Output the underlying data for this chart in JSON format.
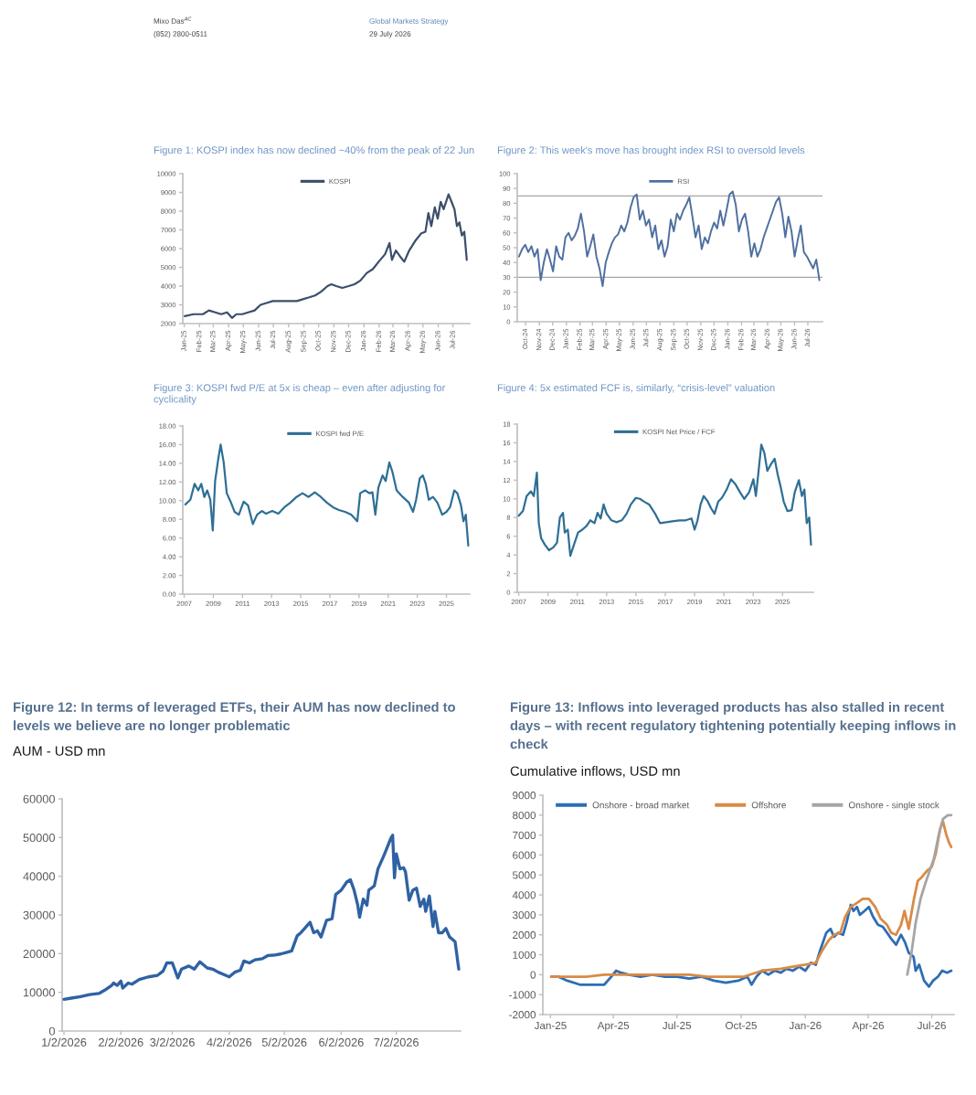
{
  "chart_data": [
    {
      "type": "line",
      "title": "Figure 1: KOSPI index has now declined ~40% from the peak of 22 Jun",
      "annotations": [
        "Mixo Das$^{AC}$",
        "(852) 2800-0511",
        "Global Markets Strategy",
        "29 July 2026"
      ],
      "x": [
        "2025-01-02",
        "2025-01-20",
        "2025-02-08",
        "2025-02-20",
        "2025-03-05",
        "2025-03-17",
        "2025-03-29",
        "2025-04-08",
        "2025-04-17",
        "2025-04-29",
        "2025-05-11",
        "2025-05-24",
        "2025-06-05",
        "2025-06-17",
        "2025-06-30",
        "2025-07-12",
        "2025-07-24",
        "2025-08-06",
        "2025-08-18",
        "2025-08-30",
        "2025-09-12",
        "2025-09-24",
        "2025-10-06",
        "2025-10-19",
        "2025-10-27",
        "2025-11-06",
        "2025-11-18",
        "2025-12-01",
        "2025-12-13",
        "2025-12-25",
        "2026-01-07",
        "2026-01-19",
        "2026-01-31",
        "2026-02-13",
        "2026-02-22",
        "2026-02-27",
        "2026-03-07",
        "2026-03-15",
        "2026-03-24",
        "2026-04-03",
        "2026-04-15",
        "2026-04-27",
        "2026-05-06",
        "2026-05-12",
        "2026-05-18",
        "2026-05-25",
        "2026-05-31",
        "2026-06-06",
        "2026-06-12",
        "2026-06-22",
        "2026-06-28",
        "2026-07-04",
        "2026-07-09",
        "2026-07-14",
        "2026-07-19",
        "2026-07-24",
        "2026-07-29"
      ],
      "series": [
        {
          "name": "KOSPI",
          "color": "#3b4f6b",
          "values": [
            2400,
            2500,
            2500,
            2700,
            2600,
            2500,
            2600,
            2300,
            2500,
            2500,
            2600,
            2700,
            3000,
            3100,
            3200,
            3200,
            3200,
            3200,
            3200,
            3300,
            3400,
            3500,
            3700,
            4000,
            4100,
            4000,
            3900,
            4000,
            4100,
            4300,
            4700,
            4900,
            5300,
            5700,
            6300,
            5400,
            5900,
            5600,
            5300,
            5900,
            6400,
            6800,
            6900,
            7900,
            7200,
            8200,
            7600,
            8500,
            8100,
            8900,
            8500,
            8100,
            7200,
            7400,
            6700,
            6900,
            5400
          ]
        }
      ],
      "xlim": [
        "2024-12-29",
        "2026-08-04"
      ],
      "ylim": [
        2000,
        10000
      ],
      "xticks": [
        {
          "value": "2025-01-01",
          "label": "Jan-25"
        },
        {
          "value": "2025-02-01",
          "label": "Feb-25"
        },
        {
          "value": "2025-03-01",
          "label": "Mar-25"
        },
        {
          "value": "2025-04-01",
          "label": "Apr-25"
        },
        {
          "value": "2025-05-01",
          "label": "May-25"
        },
        {
          "value": "2025-06-01",
          "label": "Jun-25"
        },
        {
          "value": "2025-07-01",
          "label": "Jul-25"
        },
        {
          "value": "2025-08-01",
          "label": "Aug-25"
        },
        {
          "value": "2025-09-01",
          "label": "Sep-25"
        },
        {
          "value": "2025-10-01",
          "label": "Oct-25"
        },
        {
          "value": "2025-11-01",
          "label": "Nov-25"
        },
        {
          "value": "2025-12-01",
          "label": "Dec-25"
        },
        {
          "value": "2026-01-01",
          "label": "Jan-26"
        },
        {
          "value": "2026-02-01",
          "label": "Feb-26"
        },
        {
          "value": "2026-03-01",
          "label": "Mar-26"
        },
        {
          "value": "2026-04-01",
          "label": "Apr-26"
        },
        {
          "value": "2026-05-01",
          "label": "May-26"
        },
        {
          "value": "2026-06-01",
          "label": "Jun-26"
        },
        {
          "value": "2026-07-01",
          "label": "Jul-26"
        }
      ],
      "yticks": [
        2000,
        3000,
        4000,
        5000,
        6000,
        7000,
        8000,
        9000,
        10000
      ],
      "legend": "top"
    },
    {
      "type": "line",
      "title": "Figure 2: This week's move has brought index RSI to oversold levels",
      "x": [
        "2024-09-16",
        "2024-09-23",
        "2024-09-30",
        "2024-10-07",
        "2024-10-14",
        "2024-10-21",
        "2024-10-28",
        "2024-11-04",
        "2024-11-11",
        "2024-11-18",
        "2024-11-25",
        "2024-12-02",
        "2024-12-09",
        "2024-12-16",
        "2024-12-23",
        "2024-12-30",
        "2025-01-06",
        "2025-01-13",
        "2025-01-20",
        "2025-01-27",
        "2025-02-03",
        "2025-02-10",
        "2025-02-17",
        "2025-02-24",
        "2025-03-03",
        "2025-03-10",
        "2025-03-17",
        "2025-03-24",
        "2025-03-31",
        "2025-04-07",
        "2025-04-14",
        "2025-04-21",
        "2025-04-28",
        "2025-05-05",
        "2025-05-12",
        "2025-05-19",
        "2025-05-26",
        "2025-06-02",
        "2025-06-09",
        "2025-06-16",
        "2025-06-23",
        "2025-06-30",
        "2025-07-07",
        "2025-07-14",
        "2025-07-21",
        "2025-07-28",
        "2025-08-04",
        "2025-08-11",
        "2025-08-18",
        "2025-08-25",
        "2025-09-01",
        "2025-09-08",
        "2025-09-15",
        "2025-09-22",
        "2025-09-29",
        "2025-10-06",
        "2025-10-13",
        "2025-10-20",
        "2025-10-27",
        "2025-11-03",
        "2025-11-10",
        "2025-11-17",
        "2025-11-24",
        "2025-12-01",
        "2025-12-08",
        "2025-12-15",
        "2025-12-22",
        "2025-12-29",
        "2026-01-05",
        "2026-01-12",
        "2026-01-19",
        "2026-01-26",
        "2026-02-02",
        "2026-02-09",
        "2026-02-16",
        "2026-02-23",
        "2026-03-02",
        "2026-03-09",
        "2026-03-16",
        "2026-03-23",
        "2026-03-30",
        "2026-04-06",
        "2026-04-13",
        "2026-04-20",
        "2026-04-27",
        "2026-05-04",
        "2026-05-11",
        "2026-05-18",
        "2026-05-25",
        "2026-06-01",
        "2026-06-08",
        "2026-06-15",
        "2026-06-22",
        "2026-06-29",
        "2026-07-06",
        "2026-07-13",
        "2026-07-20",
        "2026-07-27"
      ],
      "series": [
        {
          "name": "RSI",
          "color": "#4f6f9f",
          "values": [
            44,
            49,
            52,
            47,
            51,
            44,
            49,
            28,
            40,
            49,
            42,
            34,
            51,
            44,
            42,
            57,
            60,
            55,
            58,
            63,
            73,
            61,
            44,
            51,
            59,
            44,
            36,
            24,
            40,
            47,
            53,
            57,
            59,
            65,
            61,
            67,
            77,
            84,
            86,
            69,
            75,
            65,
            69,
            57,
            65,
            49,
            55,
            44,
            51,
            69,
            61,
            73,
            69,
            75,
            79,
            84,
            71,
            57,
            65,
            49,
            57,
            53,
            61,
            67,
            63,
            75,
            65,
            75,
            86,
            88,
            79,
            61,
            69,
            73,
            61,
            44,
            53,
            44,
            49,
            57,
            63,
            69,
            75,
            81,
            84,
            73,
            57,
            71,
            61,
            44,
            55,
            65,
            47,
            44,
            40,
            36,
            42,
            28
          ]
        }
      ],
      "ref_lines": [
        {
          "axis": "y",
          "value": 85,
          "color": "#a6a6a6"
        },
        {
          "axis": "y",
          "value": 30,
          "color": "#a6a6a6"
        }
      ],
      "xlim": [
        "2024-09-12",
        "2026-08-03"
      ],
      "ylim": [
        0,
        100
      ],
      "xticks": [
        {
          "value": "2024-10-01",
          "label": "Oct-24"
        },
        {
          "value": "2024-11-01",
          "label": "Nov-24"
        },
        {
          "value": "2024-12-01",
          "label": "Dec-24"
        },
        {
          "value": "2025-01-01",
          "label": "Jan-25"
        },
        {
          "value": "2025-02-01",
          "label": "Feb-25"
        },
        {
          "value": "2025-03-01",
          "label": "Mar-25"
        },
        {
          "value": "2025-04-01",
          "label": "Apr-25"
        },
        {
          "value": "2025-05-01",
          "label": "May-25"
        },
        {
          "value": "2025-06-01",
          "label": "Jun-25"
        },
        {
          "value": "2025-07-01",
          "label": "Jul-25"
        },
        {
          "value": "2025-08-01",
          "label": "Aug-25"
        },
        {
          "value": "2025-09-01",
          "label": "Sep-25"
        },
        {
          "value": "2025-10-01",
          "label": "Oct-25"
        },
        {
          "value": "2025-11-01",
          "label": "Nov-25"
        },
        {
          "value": "2025-12-01",
          "label": "Dec-25"
        },
        {
          "value": "2026-01-01",
          "label": "Jan-26"
        },
        {
          "value": "2026-02-01",
          "label": "Feb-26"
        },
        {
          "value": "2026-03-01",
          "label": "Mar-26"
        },
        {
          "value": "2026-04-01",
          "label": "Apr-26"
        },
        {
          "value": "2026-05-01",
          "label": "May-26"
        },
        {
          "value": "2026-06-01",
          "label": "Jun-26"
        },
        {
          "value": "2026-07-01",
          "label": "Jul-26"
        }
      ],
      "yticks": [
        0,
        10,
        20,
        30,
        40,
        50,
        60,
        70,
        80,
        90,
        100
      ],
      "legend": "top"
    },
    {
      "type": "line",
      "title": "Figure 3: KOSPI fwd P/E at 5x is cheap – even after adjusting for cyclicality",
      "x": [
        2007.08,
        2007.42,
        2007.71,
        2007.96,
        2008.17,
        2008.38,
        2008.58,
        2008.79,
        2008.96,
        2009.12,
        2009.33,
        2009.5,
        2009.71,
        2009.92,
        2010.21,
        2010.46,
        2010.75,
        2011.08,
        2011.38,
        2011.71,
        2012.0,
        2012.33,
        2012.62,
        2013.04,
        2013.46,
        2013.88,
        2014.29,
        2014.71,
        2015.12,
        2015.54,
        2015.96,
        2016.38,
        2016.79,
        2017.21,
        2017.62,
        2018.04,
        2018.46,
        2018.88,
        2019.08,
        2019.42,
        2019.71,
        2019.92,
        2020.12,
        2020.33,
        2020.62,
        2020.83,
        2021.08,
        2021.29,
        2021.58,
        2022.0,
        2022.42,
        2022.71,
        2022.92,
        2023.17,
        2023.38,
        2023.58,
        2023.79,
        2024.08,
        2024.38,
        2024.71,
        2025.0,
        2025.25,
        2025.54,
        2025.75,
        2026.0,
        2026.17,
        2026.33,
        2026.5
      ],
      "series": [
        {
          "name": "KOSPI fwd P/E",
          "color": "#2e6f95",
          "values": [
            9.6,
            10.1,
            11.8,
            11.1,
            11.8,
            10.4,
            11.1,
            10.1,
            6.8,
            12.1,
            14.4,
            16.0,
            14.1,
            10.8,
            9.8,
            8.8,
            8.5,
            9.9,
            9.5,
            7.5,
            8.5,
            8.9,
            8.6,
            8.9,
            8.6,
            9.3,
            9.8,
            10.4,
            10.8,
            10.4,
            10.9,
            10.4,
            9.8,
            9.3,
            9.0,
            8.8,
            8.5,
            7.8,
            10.8,
            11.1,
            10.8,
            10.9,
            8.5,
            11.4,
            12.7,
            12.1,
            14.1,
            13.1,
            11.1,
            10.4,
            9.8,
            8.8,
            10.1,
            12.4,
            12.7,
            11.8,
            10.1,
            10.4,
            9.8,
            8.5,
            8.8,
            9.3,
            11.1,
            10.8,
            9.5,
            7.8,
            8.5,
            5.2
          ]
        }
      ],
      "xlim": [
        2006.9,
        2026.6
      ],
      "ylim": [
        0,
        18
      ],
      "xticks": [
        2007,
        2009,
        2011,
        2013,
        2015,
        2017,
        2019,
        2021,
        2023,
        2025
      ],
      "yticks": [
        {
          "value": 0,
          "label": "0.00"
        },
        {
          "value": 2,
          "label": "2.00"
        },
        {
          "value": 4,
          "label": "4.00"
        },
        {
          "value": 6,
          "label": "6.00"
        },
        {
          "value": 8,
          "label": "8.00"
        },
        {
          "value": 10,
          "label": "10.00"
        },
        {
          "value": 12,
          "label": "12.00"
        },
        {
          "value": 14,
          "label": "14.00"
        },
        {
          "value": 16,
          "label": "16.00"
        },
        {
          "value": 18,
          "label": "18.00"
        }
      ],
      "legend": "top"
    },
    {
      "type": "line",
      "title": "Figure 4: 5x estimated FCF is, similarly, “crisis-level” valuation",
      "x": [
        2007.0,
        2007.29,
        2007.54,
        2007.83,
        2008.03,
        2008.24,
        2008.37,
        2008.53,
        2008.78,
        2009.07,
        2009.36,
        2009.61,
        2009.81,
        2010.02,
        2010.14,
        2010.35,
        2010.52,
        2010.77,
        2011.05,
        2011.34,
        2011.63,
        2011.88,
        2012.17,
        2012.38,
        2012.59,
        2012.79,
        2013.0,
        2013.33,
        2013.66,
        2014.03,
        2014.36,
        2014.65,
        2014.99,
        2015.27,
        2015.56,
        2015.9,
        2016.31,
        2016.64,
        2017.05,
        2017.47,
        2017.96,
        2018.38,
        2018.79,
        2019.0,
        2019.2,
        2019.41,
        2019.62,
        2019.87,
        2020.12,
        2020.36,
        2020.61,
        2020.86,
        2021.19,
        2021.48,
        2021.77,
        2022.1,
        2022.39,
        2022.72,
        2023.01,
        2023.18,
        2023.34,
        2023.55,
        2023.76,
        2023.96,
        2024.17,
        2024.46,
        2024.67,
        2024.87,
        2025.08,
        2025.33,
        2025.62,
        2025.83,
        2026.11,
        2026.32,
        2026.49,
        2026.65,
        2026.82,
        2026.94
      ],
      "series": [
        {
          "name": "KOSPI Net Price / FCF",
          "color": "#2e6f95",
          "values": [
            8.2,
            8.7,
            10.3,
            10.8,
            10.3,
            12.8,
            7.4,
            5.8,
            5.1,
            4.5,
            4.8,
            5.3,
            8.0,
            8.5,
            6.4,
            6.7,
            3.9,
            5.1,
            6.4,
            6.7,
            7.1,
            7.7,
            7.4,
            8.5,
            7.9,
            9.4,
            8.4,
            7.7,
            7.5,
            7.7,
            8.4,
            9.4,
            10.1,
            10.0,
            9.7,
            9.4,
            8.4,
            7.4,
            7.5,
            7.6,
            7.7,
            7.7,
            7.9,
            6.7,
            7.7,
            9.4,
            10.3,
            9.8,
            9.0,
            8.4,
            9.7,
            10.1,
            11.0,
            12.1,
            11.6,
            10.7,
            10.0,
            10.7,
            12.1,
            10.3,
            12.6,
            15.8,
            14.9,
            13.0,
            13.6,
            14.3,
            12.6,
            11.3,
            9.7,
            8.7,
            8.8,
            10.7,
            12.0,
            10.3,
            11.0,
            7.4,
            8.0,
            5.1
          ]
        }
      ],
      "xlim": [
        2006.9,
        2027.1
      ],
      "ylim": [
        0,
        18
      ],
      "xticks": [
        2007,
        2009,
        2011,
        2013,
        2015,
        2017,
        2019,
        2021,
        2023,
        2025
      ],
      "yticks": [
        0,
        2,
        4,
        6,
        8,
        10,
        12,
        14,
        16,
        18
      ],
      "legend": "top"
    },
    {
      "type": "line",
      "title": "Figure 12: In terms of leveraged ETFs, their AUM has now declined to levels we believe are no longer problematic",
      "subtitle": "AUM - USD mn",
      "x": [
        "2026-01-02",
        "2026-01-06",
        "2026-01-11",
        "2026-01-16",
        "2026-01-21",
        "2026-01-24",
        "2026-01-28",
        "2026-01-29",
        "2026-01-31",
        "2026-02-02",
        "2026-02-03",
        "2026-02-06",
        "2026-02-08",
        "2026-02-12",
        "2026-02-17",
        "2026-02-22",
        "2026-02-25",
        "2026-02-27",
        "2026-03-02",
        "2026-03-05",
        "2026-03-07",
        "2026-03-11",
        "2026-03-14",
        "2026-03-17",
        "2026-03-21",
        "2026-03-24",
        "2026-03-27",
        "2026-03-31",
        "2026-04-02",
        "2026-04-05",
        "2026-04-08",
        "2026-04-10",
        "2026-04-13",
        "2026-04-16",
        "2026-04-20",
        "2026-04-23",
        "2026-04-26",
        "2026-04-30",
        "2026-05-03",
        "2026-05-06",
        "2026-05-09",
        "2026-05-11",
        "2026-05-14",
        "2026-05-16",
        "2026-05-18",
        "2026-05-20",
        "2026-05-22",
        "2026-05-25",
        "2026-05-28",
        "2026-05-30",
        "2026-06-02",
        "2026-06-05",
        "2026-06-07",
        "2026-06-09",
        "2026-06-11",
        "2026-06-12",
        "2026-06-14",
        "2026-06-16",
        "2026-06-17",
        "2026-06-20",
        "2026-06-22",
        "2026-06-25",
        "2026-06-27",
        "2026-06-29",
        "2026-06-30",
        "2026-07-01",
        "2026-07-02",
        "2026-07-04",
        "2026-07-06",
        "2026-07-07",
        "2026-07-09",
        "2026-07-11",
        "2026-07-13",
        "2026-07-15",
        "2026-07-17",
        "2026-07-18",
        "2026-07-20",
        "2026-07-22",
        "2026-07-23",
        "2026-07-25",
        "2026-07-27",
        "2026-07-29",
        "2026-07-31",
        "2026-08-01",
        "2026-08-03",
        "2026-08-05"
      ],
      "series": [
        {
          "color": "#2f62a3",
          "values": [
            8200,
            8500,
            8900,
            9400,
            9700,
            10500,
            11800,
            12400,
            11800,
            12900,
            11100,
            12400,
            12100,
            13300,
            14000,
            14400,
            15500,
            17600,
            17600,
            13700,
            16000,
            16800,
            16000,
            17900,
            16300,
            16000,
            15200,
            14400,
            14000,
            15200,
            15700,
            18100,
            17600,
            18400,
            18700,
            19500,
            19600,
            19900,
            20300,
            20700,
            24600,
            25400,
            27000,
            28100,
            25400,
            25900,
            24300,
            28600,
            29000,
            35300,
            36400,
            38500,
            39100,
            36400,
            32500,
            29400,
            34100,
            32500,
            36400,
            37500,
            41900,
            45100,
            47400,
            49800,
            50600,
            39600,
            45800,
            41900,
            42200,
            41100,
            33800,
            36400,
            36900,
            32200,
            34100,
            30900,
            34900,
            27000,
            30900,
            25400,
            25400,
            26500,
            24300,
            23900,
            23100,
            16000
          ]
        }
      ],
      "xlim": [
        "2026-01-01",
        "2026-08-06"
      ],
      "ylim": [
        0,
        60000
      ],
      "xticks": [
        {
          "value": "2026-01-02",
          "label": "1/2/2026"
        },
        {
          "value": "2026-02-02",
          "label": "2/2/2026"
        },
        {
          "value": "2026-03-02",
          "label": "3/2/2026"
        },
        {
          "value": "2026-04-02",
          "label": "4/2/2026"
        },
        {
          "value": "2026-05-02",
          "label": "5/2/2026"
        },
        {
          "value": "2026-06-02",
          "label": "6/2/2026"
        },
        {
          "value": "2026-07-02",
          "label": "7/2/2026"
        }
      ],
      "yticks": [
        0,
        10000,
        20000,
        30000,
        40000,
        50000,
        60000
      ]
    },
    {
      "type": "line",
      "title": "Figure 13: Inflows into leveraged products has also stalled in recent days – with recent regulatory tightening potentially keeping inflows in check",
      "subtitle": "Cumulative inflows, USD mn",
      "series": [
        {
          "name": "Onshore - broad market",
          "color": "#2e6db4",
          "x": [
            "2025-01-02",
            "2025-01-12",
            "2025-01-25",
            "2025-02-12",
            "2025-03-01",
            "2025-03-19",
            "2025-03-29",
            "2025-04-05",
            "2025-04-12",
            "2025-04-23",
            "2025-05-10",
            "2025-05-27",
            "2025-06-14",
            "2025-07-01",
            "2025-07-19",
            "2025-08-05",
            "2025-08-23",
            "2025-09-09",
            "2025-09-27",
            "2025-10-10",
            "2025-10-16",
            "2025-10-23",
            "2025-10-31",
            "2025-11-09",
            "2025-11-18",
            "2025-11-27",
            "2025-12-05",
            "2025-12-14",
            "2025-12-23",
            "2026-01-01",
            "2026-01-09",
            "2026-01-16",
            "2026-01-22",
            "2026-01-31",
            "2026-02-06",
            "2026-02-11",
            "2026-02-17",
            "2026-02-24",
            "2026-03-01",
            "2026-03-07",
            "2026-03-11",
            "2026-03-16",
            "2026-03-20",
            "2026-03-27",
            "2026-04-02",
            "2026-04-08",
            "2026-04-15",
            "2026-04-22",
            "2026-04-28",
            "2026-05-04",
            "2026-05-11",
            "2026-05-18",
            "2026-05-24",
            "2026-05-29",
            "2026-06-05",
            "2026-06-08",
            "2026-06-13",
            "2026-06-20",
            "2026-06-27",
            "2026-07-03",
            "2026-07-10",
            "2026-07-16",
            "2026-07-23",
            "2026-07-29"
          ],
          "values": [
            -100,
            -100,
            -300,
            -500,
            -500,
            -500,
            -100,
            200,
            100,
            0,
            -100,
            0,
            -100,
            -100,
            -200,
            -100,
            -300,
            -400,
            -300,
            -100,
            -500,
            -100,
            200,
            0,
            200,
            100,
            300,
            200,
            400,
            200,
            600,
            500,
            1200,
            2100,
            2300,
            1900,
            2100,
            2000,
            2600,
            3500,
            3200,
            3400,
            3000,
            3200,
            3400,
            2900,
            2500,
            2400,
            2100,
            1800,
            1500,
            2000,
            1600,
            1100,
            900,
            200,
            500,
            -300,
            -600,
            -300,
            -100,
            200,
            100,
            200
          ]
        },
        {
          "name": "Offshore",
          "color": "#d98b45",
          "x": [
            "2025-01-02",
            "2025-01-25",
            "2025-02-21",
            "2025-03-19",
            "2025-04-05",
            "2025-05-01",
            "2025-05-27",
            "2025-06-23",
            "2025-07-19",
            "2025-08-14",
            "2025-09-09",
            "2025-10-05",
            "2025-10-31",
            "2025-11-27",
            "2025-12-14",
            "2026-01-01",
            "2026-01-16",
            "2026-01-25",
            "2026-02-03",
            "2026-02-11",
            "2026-02-20",
            "2026-02-27",
            "2026-03-07",
            "2026-03-16",
            "2026-03-24",
            "2026-04-02",
            "2026-04-11",
            "2026-04-19",
            "2026-04-28",
            "2026-05-04",
            "2026-05-11",
            "2026-05-18",
            "2026-05-23",
            "2026-05-29",
            "2026-06-05",
            "2026-06-11",
            "2026-06-17",
            "2026-06-24",
            "2026-07-01",
            "2026-07-07",
            "2026-07-13",
            "2026-07-17",
            "2026-07-22",
            "2026-07-26",
            "2026-07-29"
          ],
          "values": [
            -100,
            -100,
            -100,
            0,
            0,
            0,
            0,
            0,
            0,
            -100,
            -100,
            -100,
            200,
            300,
            400,
            500,
            600,
            1200,
            1700,
            2000,
            2100,
            2900,
            3400,
            3600,
            3800,
            3800,
            3400,
            2800,
            2500,
            2100,
            2000,
            2500,
            3200,
            2300,
            3700,
            4700,
            4900,
            5200,
            5400,
            6100,
            7300,
            7700,
            7000,
            6600,
            6400
          ]
        },
        {
          "name": "Onshore - single stock",
          "color": "#a5a5a5",
          "x": [
            "2026-05-27",
            "2026-06-02",
            "2026-06-08",
            "2026-06-15",
            "2026-06-22",
            "2026-06-28",
            "2026-07-04",
            "2026-07-11",
            "2026-07-17",
            "2026-07-24",
            "2026-07-29"
          ],
          "values": [
            0,
            1100,
            2600,
            3800,
            4600,
            5200,
            5800,
            7000,
            7800,
            8000,
            8000
          ]
        }
      ],
      "xlim": [
        "2024-12-21",
        "2026-08-02"
      ],
      "ylim": [
        -2000,
        9000
      ],
      "xticks": [
        {
          "value": "2025-01-01",
          "label": "Jan-25"
        },
        {
          "value": "2025-04-01",
          "label": "Apr-25"
        },
        {
          "value": "2025-07-01",
          "label": "Jul-25"
        },
        {
          "value": "2025-10-01",
          "label": "Oct-25"
        },
        {
          "value": "2026-01-01",
          "label": "Jan-26"
        },
        {
          "value": "2026-04-01",
          "label": "Apr-26"
        },
        {
          "value": "2026-07-01",
          "label": "Jul-26"
        }
      ],
      "yticks": [
        -2000,
        -1000,
        0,
        1000,
        2000,
        3000,
        4000,
        5000,
        6000,
        7000,
        8000,
        9000
      ],
      "legend": "top"
    }
  ]
}
